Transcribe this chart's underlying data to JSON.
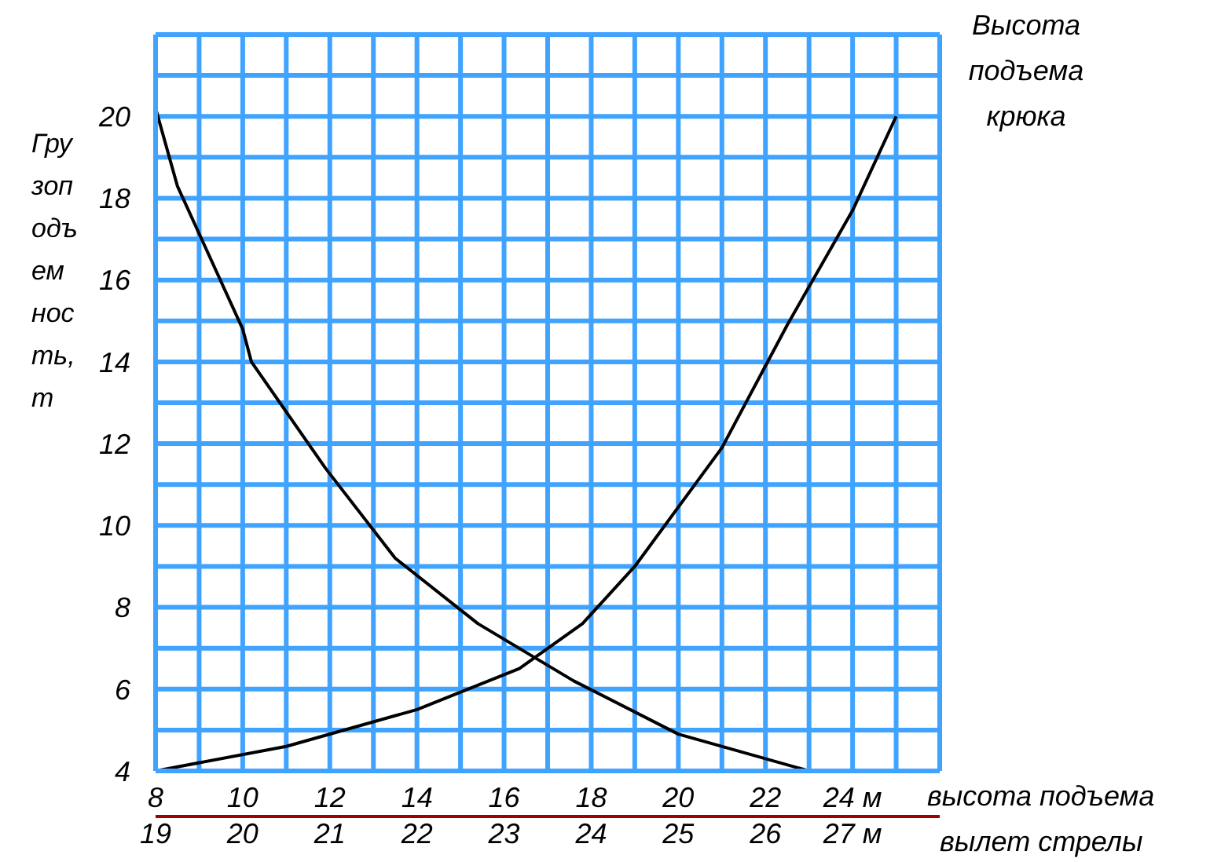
{
  "chart_data": {
    "type": "line",
    "ylabel": "Грузоподъемность, т",
    "xlabel": "высота подъема",
    "x2label": "вылет стрелы",
    "xlim": [
      8,
      26
    ],
    "xticks": [
      8,
      {
        "value": 9,
        "label": null
      },
      10,
      {
        "value": 11,
        "label": null
      },
      12,
      {
        "value": 13,
        "label": null
      },
      14,
      {
        "value": 15,
        "label": null
      },
      16,
      {
        "value": 17,
        "label": null
      },
      18,
      {
        "value": 19,
        "label": null
      },
      20,
      {
        "value": 21,
        "label": null
      },
      22,
      {
        "value": 23,
        "label": null
      },
      {
        "value": 24,
        "label": "24 м"
      },
      {
        "value": 25,
        "label": null
      },
      {
        "value": 26,
        "label": null
      }
    ],
    "x2lim": [
      19,
      28
    ],
    "x2ticks": [
      19,
      20,
      21,
      22,
      23,
      24,
      25,
      26,
      {
        "value": 27,
        "label": "27 м"
      }
    ],
    "ylim": [
      4,
      22
    ],
    "yticks": [
      4,
      {
        "value": 5,
        "label": null
      },
      6,
      {
        "value": 7,
        "label": null
      },
      8,
      {
        "value": 9,
        "label": null
      },
      10,
      {
        "value": 11,
        "label": null
      },
      12,
      {
        "value": 13,
        "label": null
      },
      14,
      {
        "value": 15,
        "label": null
      },
      16,
      {
        "value": 17,
        "label": null
      },
      18,
      {
        "value": 19,
        "label": null
      },
      20,
      {
        "value": 21,
        "label": null
      },
      {
        "value": 22,
        "label": null
      }
    ],
    "grid": true,
    "line_style": "solid",
    "series": [
      {
        "color": "#000000",
        "x": [
          8,
          8.5,
          9.1,
          10,
          10.2,
          11.9,
          13.5,
          15.4,
          17.6,
          20,
          23
        ],
        "values": [
          20.2,
          18.3,
          16.9,
          14.8,
          14.0,
          11.4,
          9.2,
          7.6,
          6.2,
          4.9,
          4.0
        ]
      },
      {
        "name": "Высота подъема крюка",
        "color": "#000000",
        "x": [
          8,
          11,
          14,
          16.35,
          17.8,
          19,
          21,
          22.5,
          24,
          25
        ],
        "values": [
          4,
          4.6,
          5.5,
          6.5,
          7.6,
          9.0,
          11.9,
          14.9,
          17.7,
          20.0
        ]
      }
    ]
  }
}
